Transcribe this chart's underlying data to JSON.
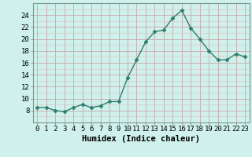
{
  "x": [
    0,
    1,
    2,
    3,
    4,
    5,
    6,
    7,
    8,
    9,
    10,
    11,
    12,
    13,
    14,
    15,
    16,
    17,
    18,
    19,
    20,
    21,
    22,
    23
  ],
  "y": [
    8.5,
    8.5,
    8.0,
    7.8,
    8.5,
    9.0,
    8.5,
    8.8,
    9.5,
    9.5,
    13.5,
    16.5,
    19.5,
    21.2,
    21.5,
    23.5,
    24.8,
    21.8,
    20.0,
    18.0,
    16.5,
    16.5,
    17.5,
    17.0
  ],
  "line_color": "#2e7d6e",
  "marker": "D",
  "marker_size": 2.5,
  "bg_color": "#cff0eb",
  "grid_color": "#c8a8a8",
  "grid_color_minor": "#ddc0c0",
  "xlabel": "Humidex (Indice chaleur)",
  "ylim": [
    6,
    26
  ],
  "xlim": [
    -0.5,
    23.5
  ],
  "yticks": [
    8,
    10,
    12,
    14,
    16,
    18,
    20,
    22,
    24
  ],
  "xticks": [
    0,
    1,
    2,
    3,
    4,
    5,
    6,
    7,
    8,
    9,
    10,
    11,
    12,
    13,
    14,
    15,
    16,
    17,
    18,
    19,
    20,
    21,
    22,
    23
  ],
  "tick_fontsize": 6.5,
  "xlabel_fontsize": 7.5
}
